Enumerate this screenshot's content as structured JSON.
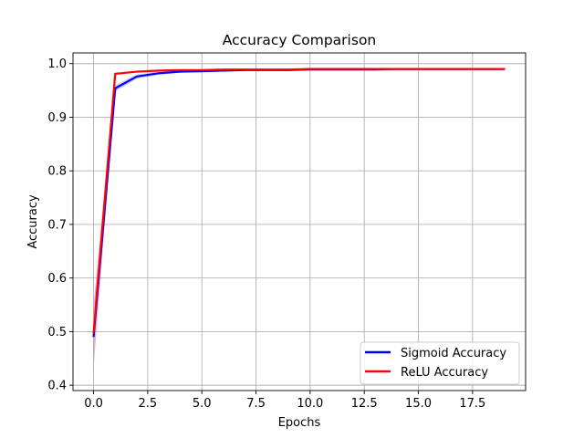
{
  "chart_data": {
    "type": "line",
    "title": "Accuracy Comparison",
    "xlabel": "Epochs",
    "ylabel": "Accuracy",
    "xlim": [
      -0.95,
      19.95
    ],
    "ylim": [
      0.39,
      1.02
    ],
    "xticks": [
      0.0,
      2.5,
      5.0,
      7.5,
      10.0,
      12.5,
      15.0,
      17.5
    ],
    "xtick_labels": [
      "0.0",
      "2.5",
      "5.0",
      "7.5",
      "10.0",
      "12.5",
      "15.0",
      "17.5"
    ],
    "yticks": [
      0.4,
      0.5,
      0.6,
      0.7,
      0.8,
      0.9,
      1.0
    ],
    "ytick_labels": [
      "0.4",
      "0.5",
      "0.6",
      "0.7",
      "0.8",
      "0.9",
      "1.0"
    ],
    "grid": true,
    "legend_position": "lower-right",
    "x": [
      0,
      1,
      2,
      3,
      4,
      5,
      6,
      7,
      8,
      9,
      10,
      11,
      12,
      13,
      14,
      15,
      16,
      17,
      18,
      19
    ],
    "series": [
      {
        "name": "Sigmoid Accuracy",
        "color": "#0000ff",
        "band_color": "#6f6fff",
        "values": [
          0.49,
          0.954,
          0.976,
          0.982,
          0.985,
          0.986,
          0.987,
          0.988,
          0.988,
          0.988,
          0.989,
          0.989,
          0.989,
          0.989,
          0.99,
          0.99,
          0.99,
          0.99,
          0.99,
          0.99
        ],
        "lower": [
          0.43,
          0.948,
          0.972,
          0.979,
          0.983,
          0.985,
          0.986,
          0.987,
          0.987,
          0.987,
          0.988,
          0.988,
          0.988,
          0.988,
          0.989,
          0.989,
          0.989,
          0.989,
          0.989,
          0.989
        ],
        "upper": [
          0.55,
          0.96,
          0.98,
          0.985,
          0.987,
          0.988,
          0.988,
          0.989,
          0.989,
          0.989,
          0.99,
          0.99,
          0.99,
          0.99,
          0.991,
          0.991,
          0.991,
          0.991,
          0.991,
          0.991
        ]
      },
      {
        "name": "ReLU Accuracy",
        "color": "#ff0000",
        "band_color": "#ff7f7f",
        "values": [
          0.497,
          0.981,
          0.985,
          0.987,
          0.988,
          0.988,
          0.989,
          0.989,
          0.989,
          0.989,
          0.99,
          0.99,
          0.99,
          0.99,
          0.99,
          0.99,
          0.99,
          0.99,
          0.99,
          0.99
        ],
        "lower": [
          0.44,
          0.979,
          0.984,
          0.986,
          0.987,
          0.987,
          0.988,
          0.988,
          0.988,
          0.988,
          0.989,
          0.989,
          0.989,
          0.989,
          0.989,
          0.989,
          0.989,
          0.989,
          0.989,
          0.989
        ],
        "upper": [
          0.55,
          0.983,
          0.986,
          0.988,
          0.989,
          0.989,
          0.99,
          0.99,
          0.99,
          0.99,
          0.991,
          0.991,
          0.991,
          0.991,
          0.991,
          0.991,
          0.991,
          0.991,
          0.991,
          0.991
        ]
      }
    ]
  }
}
